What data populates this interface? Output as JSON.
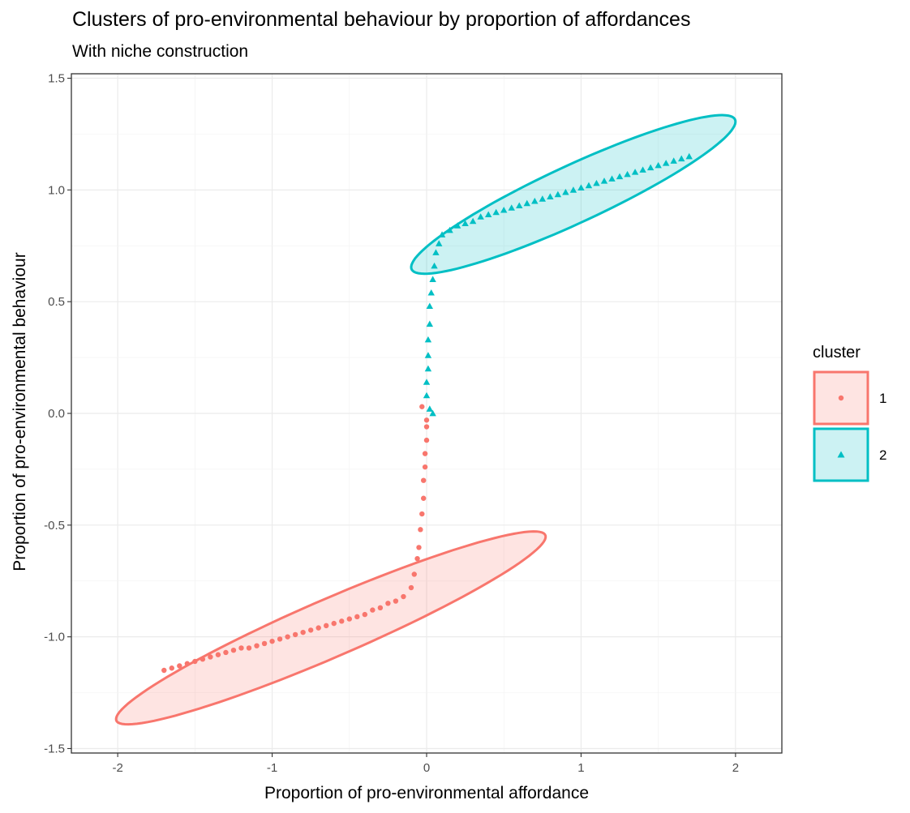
{
  "chart_data": {
    "type": "scatter",
    "title": "Clusters of pro-environmental behaviour by proportion of affordances",
    "subtitle": "With niche construction",
    "xlabel": "Proportion of pro-environmental affordance",
    "ylabel": "Proportion of pro-environmental behaviour",
    "xlim": [
      -2.3,
      2.3
    ],
    "ylim": [
      -1.52,
      1.52
    ],
    "x_ticks": [
      -2,
      -1,
      0,
      1,
      2
    ],
    "x_tick_labels": [
      "-2",
      "-1",
      "0",
      "1",
      "2"
    ],
    "y_ticks": [
      -1.5,
      -1.0,
      -0.5,
      0.0,
      0.5,
      1.0,
      1.5
    ],
    "y_tick_labels": [
      "-1.5",
      "-1.0",
      "-0.5",
      "0.0",
      "0.5",
      "1.0",
      "1.5"
    ],
    "grid": true,
    "legend": {
      "title": "cluster",
      "position": "right"
    },
    "series": [
      {
        "name": "1",
        "color": "#F8766D",
        "marker": "circle",
        "ellipse": {
          "center": [
            -0.62,
            -0.96
          ],
          "semi_axis_major": 1.45,
          "semi_axis_minor": 0.135,
          "angle_deg": 16.5
        },
        "points": [
          [
            -1.7,
            -1.15
          ],
          [
            -1.65,
            -1.14
          ],
          [
            -1.6,
            -1.13
          ],
          [
            -1.55,
            -1.12
          ],
          [
            -1.5,
            -1.11
          ],
          [
            -1.45,
            -1.1
          ],
          [
            -1.4,
            -1.09
          ],
          [
            -1.35,
            -1.08
          ],
          [
            -1.3,
            -1.07
          ],
          [
            -1.25,
            -1.06
          ],
          [
            -1.2,
            -1.05
          ],
          [
            -1.15,
            -1.05
          ],
          [
            -1.1,
            -1.04
          ],
          [
            -1.05,
            -1.03
          ],
          [
            -1.0,
            -1.02
          ],
          [
            -0.95,
            -1.01
          ],
          [
            -0.9,
            -1.0
          ],
          [
            -0.85,
            -0.99
          ],
          [
            -0.8,
            -0.98
          ],
          [
            -0.75,
            -0.97
          ],
          [
            -0.7,
            -0.96
          ],
          [
            -0.65,
            -0.95
          ],
          [
            -0.6,
            -0.94
          ],
          [
            -0.55,
            -0.93
          ],
          [
            -0.5,
            -0.92
          ],
          [
            -0.45,
            -0.91
          ],
          [
            -0.4,
            -0.9
          ],
          [
            -0.35,
            -0.88
          ],
          [
            -0.3,
            -0.87
          ],
          [
            -0.25,
            -0.85
          ],
          [
            -0.2,
            -0.84
          ],
          [
            -0.15,
            -0.82
          ],
          [
            -0.1,
            -0.78
          ],
          [
            -0.08,
            -0.72
          ],
          [
            -0.06,
            -0.65
          ],
          [
            -0.05,
            -0.6
          ],
          [
            -0.04,
            -0.52
          ],
          [
            -0.03,
            -0.45
          ],
          [
            -0.02,
            -0.38
          ],
          [
            -0.02,
            -0.3
          ],
          [
            -0.01,
            -0.24
          ],
          [
            -0.01,
            -0.18
          ],
          [
            0.0,
            -0.12
          ],
          [
            0.0,
            -0.06
          ],
          [
            0.0,
            -0.03
          ],
          [
            -0.03,
            0.03
          ]
        ]
      },
      {
        "name": "2",
        "color": "#00BFC4",
        "marker": "triangle",
        "ellipse": {
          "center": [
            0.95,
            0.98
          ],
          "semi_axis_major": 1.1,
          "semi_axis_minor": 0.135,
          "angle_deg": 17.5
        },
        "points": [
          [
            1.7,
            1.15
          ],
          [
            1.65,
            1.14
          ],
          [
            1.6,
            1.13
          ],
          [
            1.55,
            1.12
          ],
          [
            1.5,
            1.11
          ],
          [
            1.45,
            1.1
          ],
          [
            1.4,
            1.09
          ],
          [
            1.35,
            1.08
          ],
          [
            1.3,
            1.07
          ],
          [
            1.25,
            1.06
          ],
          [
            1.2,
            1.05
          ],
          [
            1.15,
            1.04
          ],
          [
            1.1,
            1.03
          ],
          [
            1.05,
            1.02
          ],
          [
            1.0,
            1.01
          ],
          [
            0.95,
            1.0
          ],
          [
            0.9,
            0.99
          ],
          [
            0.85,
            0.98
          ],
          [
            0.8,
            0.97
          ],
          [
            0.75,
            0.96
          ],
          [
            0.7,
            0.95
          ],
          [
            0.65,
            0.94
          ],
          [
            0.6,
            0.93
          ],
          [
            0.55,
            0.92
          ],
          [
            0.5,
            0.91
          ],
          [
            0.45,
            0.9
          ],
          [
            0.4,
            0.89
          ],
          [
            0.35,
            0.88
          ],
          [
            0.3,
            0.86
          ],
          [
            0.25,
            0.85
          ],
          [
            0.2,
            0.84
          ],
          [
            0.15,
            0.82
          ],
          [
            0.1,
            0.8
          ],
          [
            0.08,
            0.76
          ],
          [
            0.06,
            0.72
          ],
          [
            0.05,
            0.66
          ],
          [
            0.04,
            0.6
          ],
          [
            0.03,
            0.54
          ],
          [
            0.02,
            0.48
          ],
          [
            0.02,
            0.4
          ],
          [
            0.01,
            0.33
          ],
          [
            0.01,
            0.26
          ],
          [
            0.01,
            0.2
          ],
          [
            0.0,
            0.14
          ],
          [
            0.0,
            0.08
          ],
          [
            0.02,
            0.02
          ],
          [
            0.04,
            0.0
          ]
        ]
      }
    ]
  }
}
